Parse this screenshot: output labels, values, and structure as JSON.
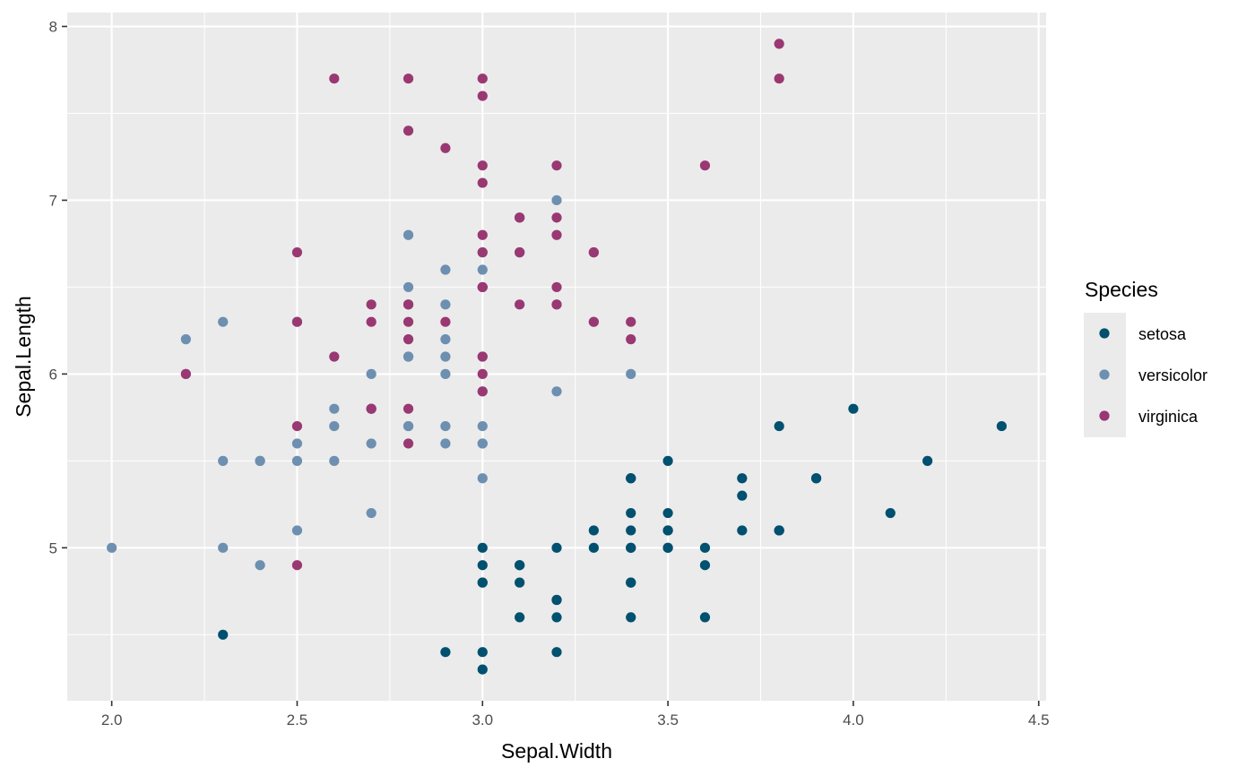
{
  "chart_data": {
    "type": "scatter",
    "xlabel": "Sepal.Width",
    "ylabel": "Sepal.Length",
    "xlim": [
      1.88,
      4.52
    ],
    "ylim": [
      4.12,
      8.08
    ],
    "x_ticks": [
      2.0,
      2.5,
      3.0,
      3.5,
      4.0,
      4.5
    ],
    "x_tick_labels": [
      "2.0",
      "2.5",
      "3.0",
      "3.5",
      "4.0",
      "4.5"
    ],
    "y_ticks": [
      5,
      6,
      7,
      8
    ],
    "y_tick_labels": [
      "5",
      "6",
      "7",
      "8"
    ],
    "grid": true,
    "legend": {
      "title": "Species",
      "position": "right"
    },
    "series": [
      {
        "name": "setosa",
        "color": "#00506f",
        "points": [
          [
            3.5,
            5.1
          ],
          [
            3.0,
            4.9
          ],
          [
            3.2,
            4.7
          ],
          [
            3.1,
            4.6
          ],
          [
            3.6,
            5.0
          ],
          [
            3.9,
            5.4
          ],
          [
            3.4,
            4.6
          ],
          [
            3.4,
            5.0
          ],
          [
            2.9,
            4.4
          ],
          [
            3.1,
            4.9
          ],
          [
            3.7,
            5.4
          ],
          [
            3.4,
            4.8
          ],
          [
            3.0,
            4.8
          ],
          [
            3.0,
            4.3
          ],
          [
            4.0,
            5.8
          ],
          [
            4.4,
            5.7
          ],
          [
            3.9,
            5.4
          ],
          [
            3.5,
            5.1
          ],
          [
            3.8,
            5.7
          ],
          [
            3.8,
            5.1
          ],
          [
            3.4,
            5.4
          ],
          [
            3.7,
            5.1
          ],
          [
            3.6,
            4.6
          ],
          [
            3.3,
            5.1
          ],
          [
            3.4,
            4.8
          ],
          [
            3.0,
            5.0
          ],
          [
            3.4,
            5.0
          ],
          [
            3.5,
            5.2
          ],
          [
            3.4,
            5.2
          ],
          [
            3.2,
            4.7
          ],
          [
            3.1,
            4.8
          ],
          [
            3.4,
            5.4
          ],
          [
            4.1,
            5.2
          ],
          [
            4.2,
            5.5
          ],
          [
            3.1,
            4.9
          ],
          [
            3.2,
            5.0
          ],
          [
            3.5,
            5.5
          ],
          [
            3.6,
            4.9
          ],
          [
            3.0,
            4.4
          ],
          [
            3.4,
            5.1
          ],
          [
            3.5,
            5.0
          ],
          [
            2.3,
            4.5
          ],
          [
            3.2,
            4.4
          ],
          [
            3.5,
            5.0
          ],
          [
            3.8,
            5.1
          ],
          [
            3.0,
            4.8
          ],
          [
            3.8,
            5.1
          ],
          [
            3.2,
            4.6
          ],
          [
            3.7,
            5.3
          ],
          [
            3.3,
            5.0
          ]
        ]
      },
      {
        "name": "versicolor",
        "color": "#6d8fb0",
        "points": [
          [
            3.2,
            7.0
          ],
          [
            3.2,
            6.4
          ],
          [
            3.1,
            6.9
          ],
          [
            2.3,
            5.5
          ],
          [
            2.8,
            6.5
          ],
          [
            2.8,
            5.7
          ],
          [
            3.3,
            6.3
          ],
          [
            2.4,
            4.9
          ],
          [
            2.9,
            6.6
          ],
          [
            2.7,
            5.2
          ],
          [
            2.0,
            5.0
          ],
          [
            3.0,
            5.9
          ],
          [
            2.2,
            6.0
          ],
          [
            2.9,
            6.1
          ],
          [
            2.9,
            5.6
          ],
          [
            3.1,
            6.7
          ],
          [
            3.0,
            5.6
          ],
          [
            2.7,
            5.8
          ],
          [
            2.2,
            6.2
          ],
          [
            2.5,
            5.6
          ],
          [
            3.2,
            5.9
          ],
          [
            2.8,
            6.1
          ],
          [
            2.5,
            6.3
          ],
          [
            2.8,
            6.1
          ],
          [
            2.9,
            6.4
          ],
          [
            3.0,
            6.6
          ],
          [
            2.8,
            6.8
          ],
          [
            3.0,
            6.7
          ],
          [
            2.9,
            6.0
          ],
          [
            2.6,
            5.7
          ],
          [
            2.4,
            5.5
          ],
          [
            2.4,
            5.5
          ],
          [
            2.7,
            5.8
          ],
          [
            2.7,
            6.0
          ],
          [
            3.0,
            5.4
          ],
          [
            3.4,
            6.0
          ],
          [
            3.1,
            6.7
          ],
          [
            2.3,
            6.3
          ],
          [
            3.0,
            5.6
          ],
          [
            2.5,
            5.5
          ],
          [
            2.6,
            5.5
          ],
          [
            3.0,
            6.1
          ],
          [
            2.6,
            5.8
          ],
          [
            2.3,
            5.0
          ],
          [
            2.7,
            5.6
          ],
          [
            3.0,
            5.7
          ],
          [
            2.9,
            5.7
          ],
          [
            2.9,
            6.2
          ],
          [
            2.5,
            5.1
          ],
          [
            2.8,
            5.7
          ]
        ]
      },
      {
        "name": "virginica",
        "color": "#993872",
        "points": [
          [
            3.3,
            6.3
          ],
          [
            2.7,
            5.8
          ],
          [
            3.0,
            7.1
          ],
          [
            2.9,
            6.3
          ],
          [
            3.0,
            6.5
          ],
          [
            3.0,
            7.6
          ],
          [
            2.5,
            4.9
          ],
          [
            2.9,
            7.3
          ],
          [
            2.5,
            6.7
          ],
          [
            3.6,
            7.2
          ],
          [
            3.2,
            6.5
          ],
          [
            2.7,
            6.4
          ],
          [
            3.0,
            6.8
          ],
          [
            2.5,
            5.7
          ],
          [
            2.8,
            5.8
          ],
          [
            3.2,
            6.4
          ],
          [
            3.0,
            6.5
          ],
          [
            3.8,
            7.7
          ],
          [
            2.6,
            7.7
          ],
          [
            2.2,
            6.0
          ],
          [
            3.2,
            6.9
          ],
          [
            2.8,
            5.6
          ],
          [
            2.8,
            7.7
          ],
          [
            2.7,
            6.3
          ],
          [
            3.3,
            6.7
          ],
          [
            3.2,
            7.2
          ],
          [
            2.8,
            6.2
          ],
          [
            3.0,
            6.1
          ],
          [
            2.8,
            6.4
          ],
          [
            3.0,
            7.2
          ],
          [
            2.8,
            7.4
          ],
          [
            3.8,
            7.9
          ],
          [
            2.8,
            6.4
          ],
          [
            2.8,
            6.3
          ],
          [
            2.6,
            6.1
          ],
          [
            3.0,
            7.7
          ],
          [
            3.4,
            6.3
          ],
          [
            3.1,
            6.4
          ],
          [
            3.0,
            6.0
          ],
          [
            3.1,
            6.9
          ],
          [
            3.1,
            6.7
          ],
          [
            3.1,
            6.9
          ],
          [
            2.7,
            5.8
          ],
          [
            3.2,
            6.8
          ],
          [
            3.3,
            6.7
          ],
          [
            3.0,
            6.7
          ],
          [
            2.5,
            6.3
          ],
          [
            3.0,
            6.5
          ],
          [
            3.4,
            6.2
          ],
          [
            3.0,
            5.9
          ]
        ]
      }
    ]
  }
}
